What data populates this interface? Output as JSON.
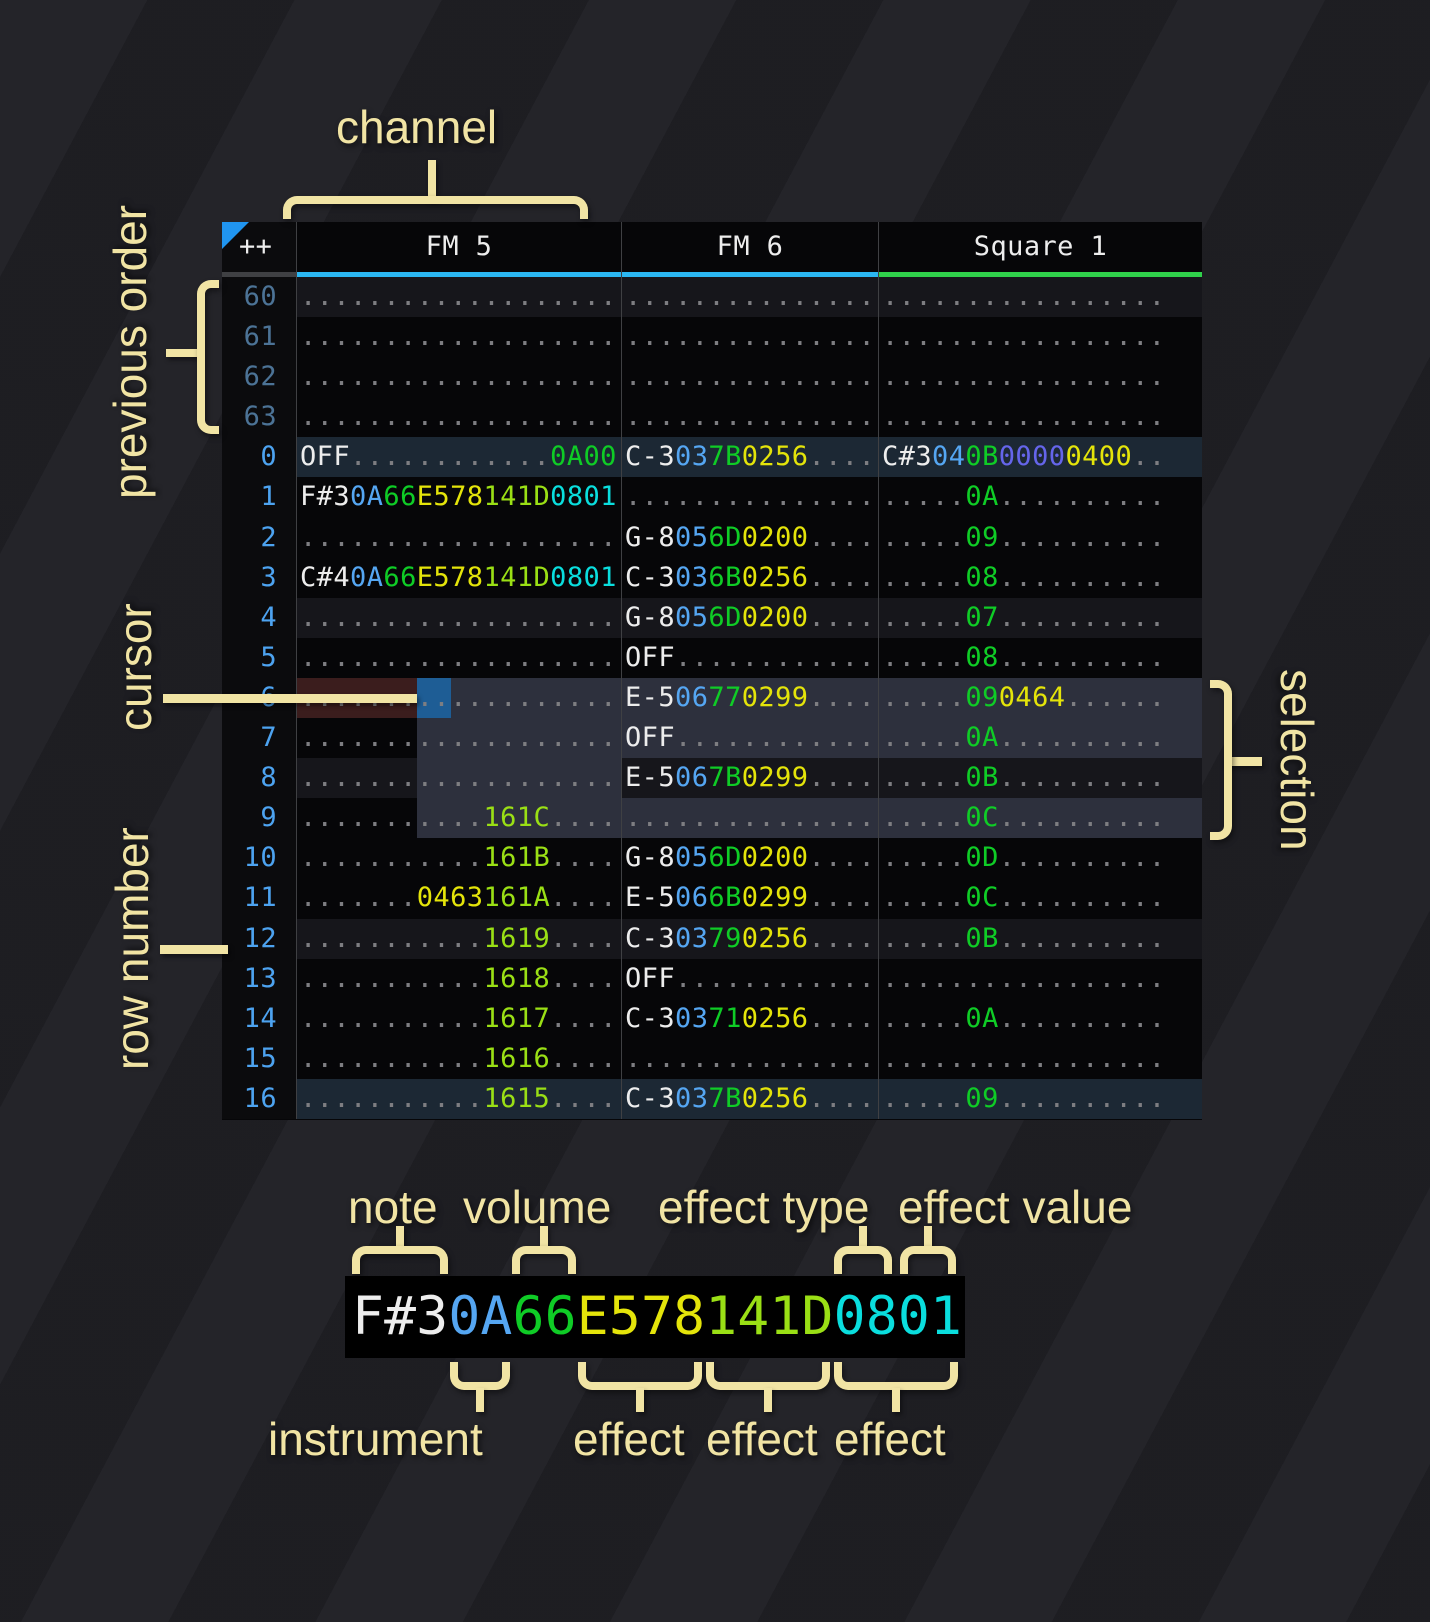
{
  "header": {
    "corner": "++",
    "channels": [
      {
        "name": "FM 5",
        "accent": "#2bb7f2"
      },
      {
        "name": "FM 6",
        "accent": "#2bb7f2"
      },
      {
        "name": "Square 1",
        "accent": "#30d14b"
      }
    ]
  },
  "colors": {
    "note": "#ededed",
    "instrument": "#55a6f2",
    "volume": "#0fcc26",
    "effect_yellow": "#e4e40a",
    "effect_lime": "#9adf15",
    "effect_cyan": "#0adede",
    "effect_purple": "#6565ea",
    "empty_dot": "#7e7e82",
    "row_number": "#4da3f0",
    "row_number_previous": "#4c7396",
    "selection_bg": "#2d303d",
    "cursor_bg": "#1e5d95",
    "cursor_row_bg": "#3b1d1d",
    "highlight_row_bg": "#1c2834",
    "stripe_row_bg": "#16161b",
    "annotation": "#f1e4a4",
    "corner_triangle": "#2095f0"
  },
  "cursor": {
    "row": "6"
  },
  "selection": {
    "rows": [
      "6",
      "7",
      "8",
      "9"
    ]
  },
  "labels": {
    "channel": "channel",
    "previous_order": "previous order",
    "cursor": "cursor",
    "row_number": "row number",
    "selection": "selection",
    "note": "note",
    "volume": "volume",
    "effect_type": "effect type",
    "effect_value": "effect value",
    "instrument": "instrument",
    "effect_1": "effect",
    "effect_2": "effect",
    "effect_3": "effect"
  },
  "example": {
    "segments": [
      {
        "t": "F#3",
        "c": "n"
      },
      {
        "t": "0A",
        "c": "i"
      },
      {
        "t": "66",
        "c": "g"
      },
      {
        "t": "E578",
        "c": "y"
      },
      {
        "t": "141D",
        "c": "l"
      },
      {
        "t": "0801",
        "c": "c"
      }
    ]
  },
  "rows": [
    {
      "n": "60",
      "kind": "prev",
      "hl": "stripe",
      "fm5": [
        {
          "t": "...................",
          "c": "d"
        }
      ],
      "fm6": [
        {
          "t": "...............",
          "c": "d"
        }
      ],
      "sq1": [
        {
          "t": ".................",
          "c": "d"
        }
      ]
    },
    {
      "n": "61",
      "kind": "prev",
      "hl": "",
      "fm5": [
        {
          "t": "...................",
          "c": "d"
        }
      ],
      "fm6": [
        {
          "t": "...............",
          "c": "d"
        }
      ],
      "sq1": [
        {
          "t": ".................",
          "c": "d"
        }
      ]
    },
    {
      "n": "62",
      "kind": "prev",
      "hl": "",
      "fm5": [
        {
          "t": "...................",
          "c": "d"
        }
      ],
      "fm6": [
        {
          "t": "...............",
          "c": "d"
        }
      ],
      "sq1": [
        {
          "t": ".................",
          "c": "d"
        }
      ]
    },
    {
      "n": "63",
      "kind": "prev",
      "hl": "",
      "fm5": [
        {
          "t": "...................",
          "c": "d"
        }
      ],
      "fm6": [
        {
          "t": "...............",
          "c": "d"
        }
      ],
      "sq1": [
        {
          "t": ".................",
          "c": "d"
        }
      ]
    },
    {
      "n": "0",
      "kind": "cur",
      "hl": "hl2",
      "fm5": [
        {
          "t": "OFF",
          "c": "n"
        },
        {
          "t": "............",
          "c": "d"
        },
        {
          "t": "0A00",
          "c": "g"
        }
      ],
      "fm6": [
        {
          "t": "C-3",
          "c": "n"
        },
        {
          "t": "03",
          "c": "i"
        },
        {
          "t": "7B",
          "c": "g"
        },
        {
          "t": "0256",
          "c": "y"
        },
        {
          "t": "....",
          "c": "d"
        }
      ],
      "sq1": [
        {
          "t": "C#3",
          "c": "n"
        },
        {
          "t": "04",
          "c": "i"
        },
        {
          "t": "0B",
          "c": "g"
        },
        {
          "t": "0000",
          "c": "p"
        },
        {
          "t": "0400",
          "c": "y"
        },
        {
          "t": "..",
          "c": "d"
        }
      ]
    },
    {
      "n": "1",
      "kind": "cur",
      "hl": "",
      "fm5": [
        {
          "t": "F#3",
          "c": "n"
        },
        {
          "t": "0A",
          "c": "i"
        },
        {
          "t": "66",
          "c": "g"
        },
        {
          "t": "E578",
          "c": "y"
        },
        {
          "t": "141D",
          "c": "l"
        },
        {
          "t": "0801",
          "c": "c"
        }
      ],
      "fm6": [
        {
          "t": "...............",
          "c": "d"
        }
      ],
      "sq1": [
        {
          "t": ".....",
          "c": "d"
        },
        {
          "t": "0A",
          "c": "g"
        },
        {
          "t": "..........",
          "c": "d"
        }
      ]
    },
    {
      "n": "2",
      "kind": "cur",
      "hl": "",
      "fm5": [
        {
          "t": "...................",
          "c": "d"
        }
      ],
      "fm6": [
        {
          "t": "G-8",
          "c": "n"
        },
        {
          "t": "05",
          "c": "i"
        },
        {
          "t": "6D",
          "c": "g"
        },
        {
          "t": "0200",
          "c": "y"
        },
        {
          "t": "....",
          "c": "d"
        }
      ],
      "sq1": [
        {
          "t": ".....",
          "c": "d"
        },
        {
          "t": "09",
          "c": "g"
        },
        {
          "t": "..........",
          "c": "d"
        }
      ]
    },
    {
      "n": "3",
      "kind": "cur",
      "hl": "",
      "fm5": [
        {
          "t": "C#4",
          "c": "n"
        },
        {
          "t": "0A",
          "c": "i"
        },
        {
          "t": "66",
          "c": "g"
        },
        {
          "t": "E578",
          "c": "y"
        },
        {
          "t": "141D",
          "c": "l"
        },
        {
          "t": "0801",
          "c": "c"
        }
      ],
      "fm6": [
        {
          "t": "C-3",
          "c": "n"
        },
        {
          "t": "03",
          "c": "i"
        },
        {
          "t": "6B",
          "c": "g"
        },
        {
          "t": "0256",
          "c": "y"
        },
        {
          "t": "....",
          "c": "d"
        }
      ],
      "sq1": [
        {
          "t": ".....",
          "c": "d"
        },
        {
          "t": "08",
          "c": "g"
        },
        {
          "t": "..........",
          "c": "d"
        }
      ]
    },
    {
      "n": "4",
      "kind": "cur",
      "hl": "stripe",
      "fm5": [
        {
          "t": "...................",
          "c": "d"
        }
      ],
      "fm6": [
        {
          "t": "G-8",
          "c": "n"
        },
        {
          "t": "05",
          "c": "i"
        },
        {
          "t": "6D",
          "c": "g"
        },
        {
          "t": "0200",
          "c": "y"
        },
        {
          "t": "....",
          "c": "d"
        }
      ],
      "sq1": [
        {
          "t": ".....",
          "c": "d"
        },
        {
          "t": "07",
          "c": "g"
        },
        {
          "t": "..........",
          "c": "d"
        }
      ]
    },
    {
      "n": "5",
      "kind": "cur",
      "hl": "",
      "fm5": [
        {
          "t": "...................",
          "c": "d"
        }
      ],
      "fm6": [
        {
          "t": "OFF",
          "c": "n"
        },
        {
          "t": "............",
          "c": "d"
        }
      ],
      "sq1": [
        {
          "t": ".....",
          "c": "d"
        },
        {
          "t": "08",
          "c": "g"
        },
        {
          "t": "..........",
          "c": "d"
        }
      ]
    },
    {
      "n": "6",
      "kind": "cur",
      "hl": "",
      "fm5": [
        {
          "t": "...................",
          "c": "d"
        }
      ],
      "fm6": [
        {
          "t": "E-5",
          "c": "n"
        },
        {
          "t": "06",
          "c": "i"
        },
        {
          "t": "77",
          "c": "g"
        },
        {
          "t": "0299",
          "c": "y"
        },
        {
          "t": "....",
          "c": "d"
        }
      ],
      "sq1": [
        {
          "t": ".....",
          "c": "d"
        },
        {
          "t": "09",
          "c": "g"
        },
        {
          "t": "0464",
          "c": "y"
        },
        {
          "t": "......",
          "c": "d"
        }
      ]
    },
    {
      "n": "7",
      "kind": "cur",
      "hl": "",
      "fm5": [
        {
          "t": "...................",
          "c": "d"
        }
      ],
      "fm6": [
        {
          "t": "OFF",
          "c": "n"
        },
        {
          "t": "............",
          "c": "d"
        }
      ],
      "sq1": [
        {
          "t": ".....",
          "c": "d"
        },
        {
          "t": "0A",
          "c": "g"
        },
        {
          "t": "..........",
          "c": "d"
        }
      ]
    },
    {
      "n": "8",
      "kind": "cur",
      "hl": "stripe",
      "fm5": [
        {
          "t": "...................",
          "c": "d"
        }
      ],
      "fm6": [
        {
          "t": "E-5",
          "c": "n"
        },
        {
          "t": "06",
          "c": "i"
        },
        {
          "t": "7B",
          "c": "g"
        },
        {
          "t": "0299",
          "c": "y"
        },
        {
          "t": "....",
          "c": "d"
        }
      ],
      "sq1": [
        {
          "t": ".....",
          "c": "d"
        },
        {
          "t": "0B",
          "c": "g"
        },
        {
          "t": "..........",
          "c": "d"
        }
      ]
    },
    {
      "n": "9",
      "kind": "cur",
      "hl": "",
      "fm5": [
        {
          "t": "...........",
          "c": "d"
        },
        {
          "t": "161C",
          "c": "l"
        },
        {
          "t": "....",
          "c": "d"
        }
      ],
      "fm6": [
        {
          "t": "...............",
          "c": "d"
        }
      ],
      "sq1": [
        {
          "t": ".....",
          "c": "d"
        },
        {
          "t": "0C",
          "c": "g"
        },
        {
          "t": "..........",
          "c": "d"
        }
      ]
    },
    {
      "n": "10",
      "kind": "cur",
      "hl": "",
      "fm5": [
        {
          "t": "...........",
          "c": "d"
        },
        {
          "t": "161B",
          "c": "l"
        },
        {
          "t": "....",
          "c": "d"
        }
      ],
      "fm6": [
        {
          "t": "G-8",
          "c": "n"
        },
        {
          "t": "05",
          "c": "i"
        },
        {
          "t": "6D",
          "c": "g"
        },
        {
          "t": "0200",
          "c": "y"
        },
        {
          "t": "....",
          "c": "d"
        }
      ],
      "sq1": [
        {
          "t": ".....",
          "c": "d"
        },
        {
          "t": "0D",
          "c": "g"
        },
        {
          "t": "..........",
          "c": "d"
        }
      ]
    },
    {
      "n": "11",
      "kind": "cur",
      "hl": "",
      "fm5": [
        {
          "t": ".......",
          "c": "d"
        },
        {
          "t": "0463",
          "c": "y"
        },
        {
          "t": "161A",
          "c": "l"
        },
        {
          "t": "....",
          "c": "d"
        }
      ],
      "fm6": [
        {
          "t": "E-5",
          "c": "n"
        },
        {
          "t": "06",
          "c": "i"
        },
        {
          "t": "6B",
          "c": "g"
        },
        {
          "t": "0299",
          "c": "y"
        },
        {
          "t": "....",
          "c": "d"
        }
      ],
      "sq1": [
        {
          "t": ".....",
          "c": "d"
        },
        {
          "t": "0C",
          "c": "g"
        },
        {
          "t": "..........",
          "c": "d"
        }
      ]
    },
    {
      "n": "12",
      "kind": "cur",
      "hl": "stripe",
      "fm5": [
        {
          "t": "...........",
          "c": "d"
        },
        {
          "t": "1619",
          "c": "l"
        },
        {
          "t": "....",
          "c": "d"
        }
      ],
      "fm6": [
        {
          "t": "C-3",
          "c": "n"
        },
        {
          "t": "03",
          "c": "i"
        },
        {
          "t": "79",
          "c": "g"
        },
        {
          "t": "0256",
          "c": "y"
        },
        {
          "t": "....",
          "c": "d"
        }
      ],
      "sq1": [
        {
          "t": ".....",
          "c": "d"
        },
        {
          "t": "0B",
          "c": "g"
        },
        {
          "t": "..........",
          "c": "d"
        }
      ]
    },
    {
      "n": "13",
      "kind": "cur",
      "hl": "",
      "fm5": [
        {
          "t": "...........",
          "c": "d"
        },
        {
          "t": "1618",
          "c": "l"
        },
        {
          "t": "....",
          "c": "d"
        }
      ],
      "fm6": [
        {
          "t": "OFF",
          "c": "n"
        },
        {
          "t": "............",
          "c": "d"
        }
      ],
      "sq1": [
        {
          "t": ".................",
          "c": "d"
        }
      ]
    },
    {
      "n": "14",
      "kind": "cur",
      "hl": "",
      "fm5": [
        {
          "t": "...........",
          "c": "d"
        },
        {
          "t": "1617",
          "c": "l"
        },
        {
          "t": "....",
          "c": "d"
        }
      ],
      "fm6": [
        {
          "t": "C-3",
          "c": "n"
        },
        {
          "t": "03",
          "c": "i"
        },
        {
          "t": "71",
          "c": "g"
        },
        {
          "t": "0256",
          "c": "y"
        },
        {
          "t": "....",
          "c": "d"
        }
      ],
      "sq1": [
        {
          "t": ".....",
          "c": "d"
        },
        {
          "t": "0A",
          "c": "g"
        },
        {
          "t": "..........",
          "c": "d"
        }
      ]
    },
    {
      "n": "15",
      "kind": "cur",
      "hl": "",
      "fm5": [
        {
          "t": "...........",
          "c": "d"
        },
        {
          "t": "1616",
          "c": "l"
        },
        {
          "t": "....",
          "c": "d"
        }
      ],
      "fm6": [
        {
          "t": "...............",
          "c": "d"
        }
      ],
      "sq1": [
        {
          "t": ".................",
          "c": "d"
        }
      ]
    },
    {
      "n": "16",
      "kind": "cur",
      "hl": "hl2",
      "fm5": [
        {
          "t": "...........",
          "c": "d"
        },
        {
          "t": "1615",
          "c": "l"
        },
        {
          "t": "....",
          "c": "d"
        }
      ],
      "fm6": [
        {
          "t": "C-3",
          "c": "n"
        },
        {
          "t": "03",
          "c": "i"
        },
        {
          "t": "7B",
          "c": "g"
        },
        {
          "t": "0256",
          "c": "y"
        },
        {
          "t": "....",
          "c": "d"
        }
      ],
      "sq1": [
        {
          "t": ".....",
          "c": "d"
        },
        {
          "t": "09",
          "c": "g"
        },
        {
          "t": "..........",
          "c": "d"
        }
      ]
    }
  ]
}
